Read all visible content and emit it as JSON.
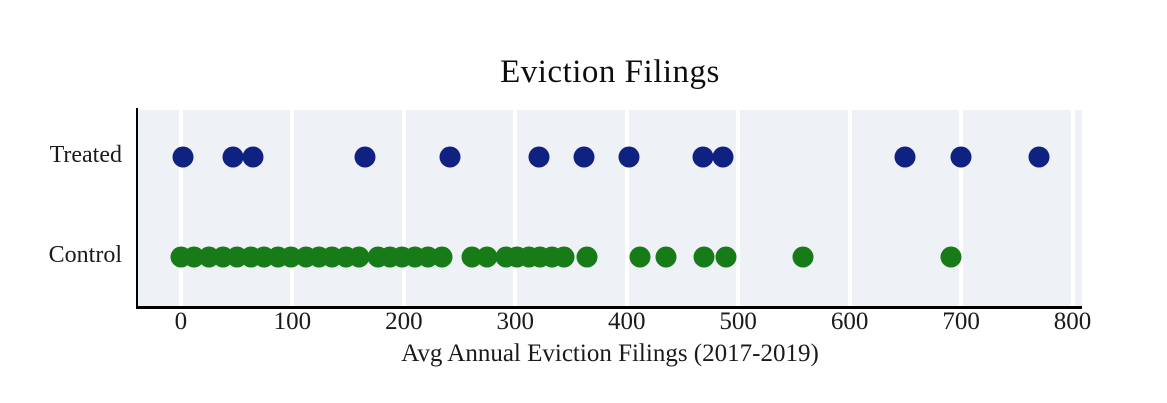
{
  "title": "Eviction Filings",
  "x_axis_label": "Avg Annual Eviction Filings (2017-2019)",
  "colors": {
    "treated": "#0f2181",
    "control": "#177c17",
    "plot_background": "#eef1f5",
    "gridline": "#ffffff",
    "spine": "#000000"
  },
  "chart_data": {
    "type": "scatter",
    "subtype": "strip-plot",
    "title": "Eviction Filings",
    "xlabel": "Avg Annual Eviction Filings (2017-2019)",
    "ylabel": "",
    "categories": [
      "Treated",
      "Control"
    ],
    "row_fractions": [
      0.24,
      0.75
    ],
    "xlim": [
      -38.5,
      808.5
    ],
    "x_ticks": [
      0,
      100,
      200,
      300,
      400,
      500,
      600,
      700,
      800
    ],
    "grid": "vertical-white-on-light-panel",
    "legend": "none",
    "series": [
      {
        "name": "Treated",
        "color": "#0f2181",
        "values": [
          2,
          47,
          65,
          165,
          241,
          321,
          362,
          402,
          468,
          486,
          650,
          700,
          770
        ]
      },
      {
        "name": "Control",
        "color": "#177c17",
        "values": [
          0,
          12,
          25,
          38,
          50,
          63,
          75,
          87,
          99,
          112,
          124,
          136,
          148,
          160,
          177,
          188,
          198,
          210,
          222,
          234,
          261,
          275,
          292,
          302,
          312,
          322,
          333,
          344,
          364,
          412,
          435,
          469,
          489,
          558,
          691
        ]
      }
    ]
  }
}
